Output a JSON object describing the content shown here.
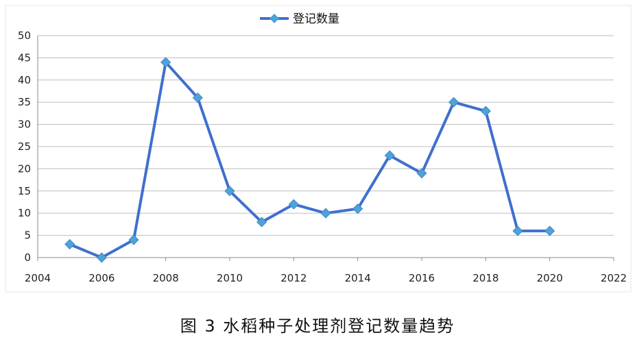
{
  "caption": "图 3 水稻种子处理剂登记数量趋势",
  "chart_data": {
    "type": "line",
    "legend": {
      "position": "top",
      "entries": [
        "登记数量"
      ]
    },
    "series": [
      {
        "name": "登记数量",
        "color": "#3f6fce",
        "marker_color": "#4da3d8",
        "x": [
          2005,
          2006,
          2007,
          2008,
          2009,
          2010,
          2011,
          2012,
          2013,
          2014,
          2015,
          2016,
          2017,
          2018,
          2019,
          2020
        ],
        "y": [
          3,
          0,
          4,
          44,
          36,
          15,
          8,
          12,
          10,
          11,
          23,
          19,
          35,
          33,
          6,
          6
        ]
      }
    ],
    "xlim": [
      2004,
      2022
    ],
    "ylim": [
      0,
      50
    ],
    "x_ticks": [
      2004,
      2006,
      2008,
      2010,
      2012,
      2014,
      2016,
      2018,
      2020,
      2022
    ],
    "y_ticks": [
      0,
      5,
      10,
      15,
      20,
      25,
      30,
      35,
      40,
      45,
      50
    ],
    "grid": {
      "horizontal": true,
      "vertical": false
    }
  }
}
